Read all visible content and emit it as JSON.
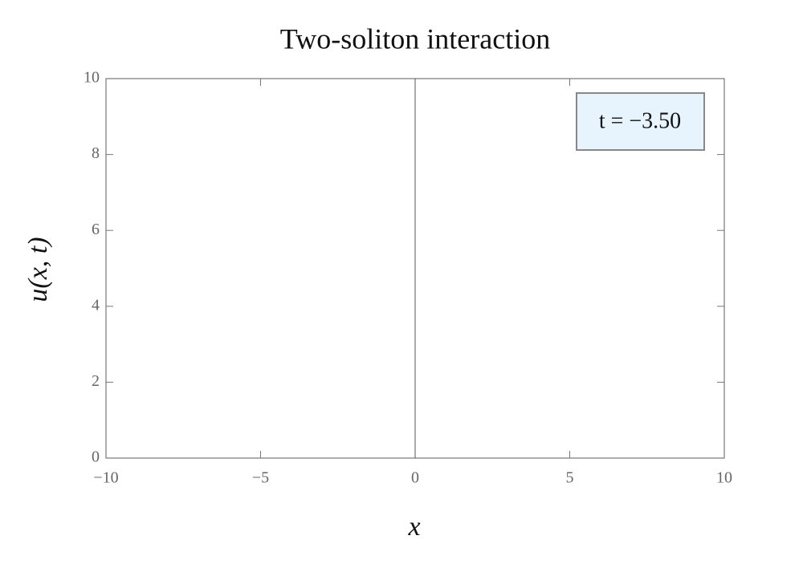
{
  "chart_data": {
    "type": "line",
    "title": "Two-soliton interaction",
    "xlabel": "x",
    "ylabel": "u(x, t)",
    "annotation": "t = −3.50",
    "xlim": [
      -10,
      10
    ],
    "xticks": [
      {
        "value": -10,
        "label": "−10"
      },
      {
        "value": -5,
        "label": "−5"
      },
      0,
      5,
      10
    ],
    "ylim": [
      0,
      10
    ],
    "yticks": [
      0,
      2,
      4,
      6,
      8,
      10
    ]
  }
}
